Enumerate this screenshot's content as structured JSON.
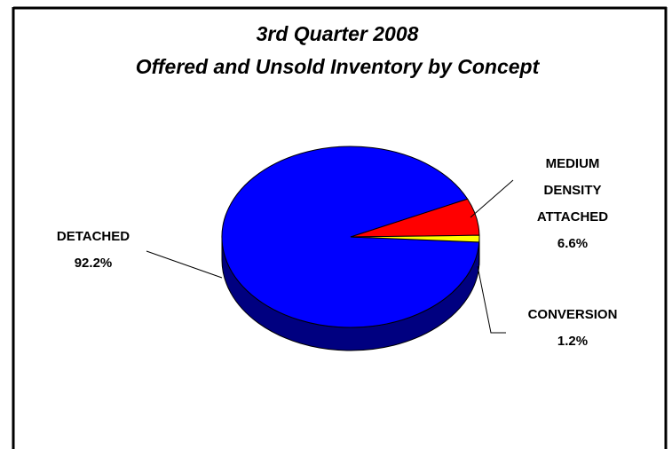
{
  "chart_data": {
    "type": "pie",
    "title": "3rd Quarter 2008",
    "subtitle": "Offered and Unsold Inventory by Concept",
    "categories": [
      "DETACHED",
      "MEDIUM DENSITY ATTACHED",
      "CONVERSION"
    ],
    "values": [
      92.2,
      6.6,
      1.2
    ],
    "value_labels": [
      "92.2%",
      "6.6%",
      "1.2%"
    ],
    "colors": [
      "#0000ff",
      "#ff0000",
      "#ffff00"
    ]
  }
}
